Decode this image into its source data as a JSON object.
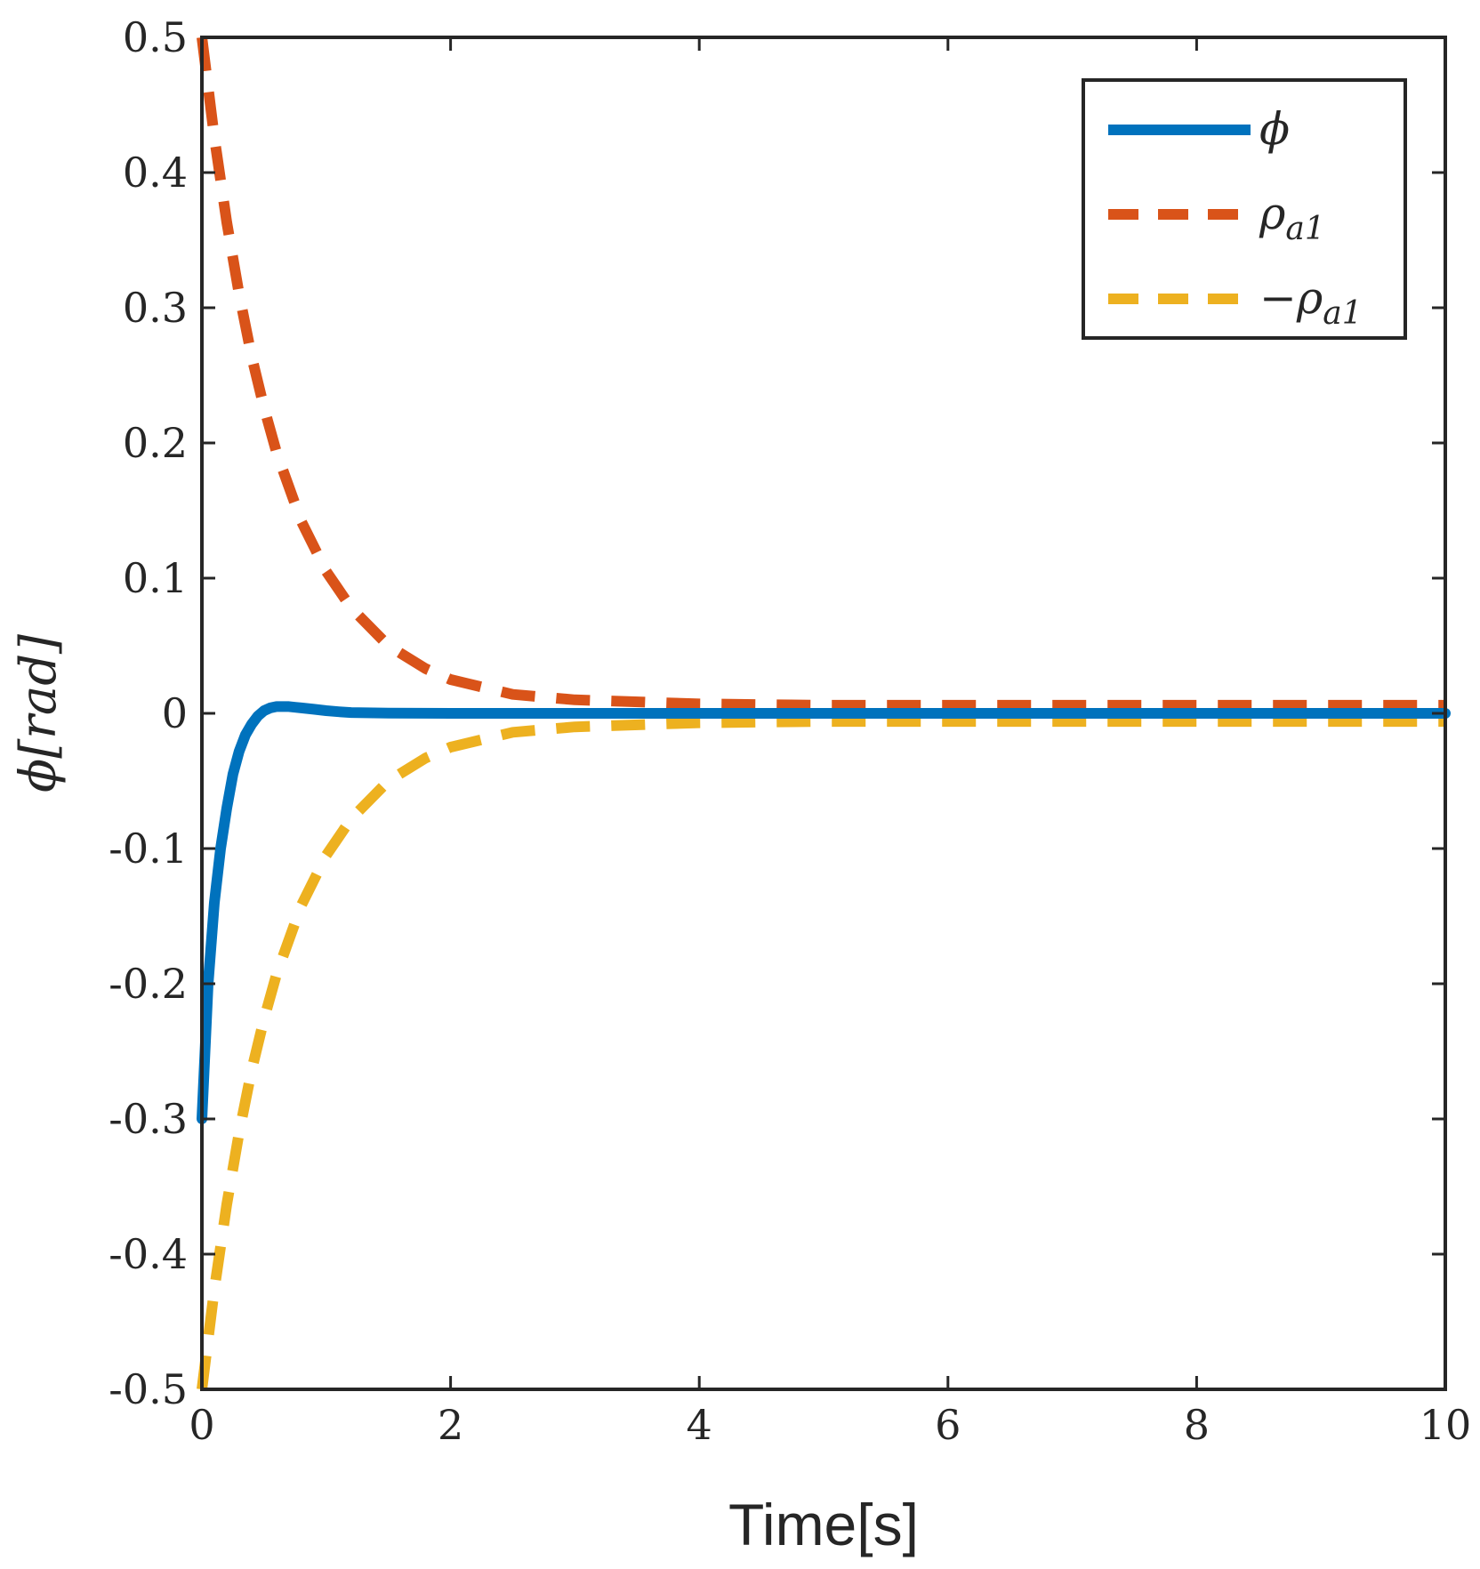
{
  "chart_data": {
    "type": "line",
    "title": "",
    "xlabel": "Time[s]",
    "ylabel_symbol": "ϕ",
    "ylabel_unit": "[rad]",
    "xlim": [
      0,
      10
    ],
    "ylim": [
      -0.5,
      0.5
    ],
    "grid": false,
    "legend_position": "top-right",
    "x_ticks": [
      0,
      2,
      4,
      6,
      8,
      10
    ],
    "x_tick_labels": [
      "0",
      "2",
      "4",
      "6",
      "8",
      "10"
    ],
    "y_ticks": [
      0.5,
      0.4,
      0.3,
      0.2,
      0.1,
      0,
      -0.1,
      -0.2,
      -0.3,
      -0.4,
      -0.5
    ],
    "y_tick_labels": [
      "0.5",
      "0.4",
      "0.3",
      "0.2",
      "0.1",
      "0",
      "-0.1",
      "-0.2",
      "-0.3",
      "-0.4",
      "-0.5"
    ],
    "series": [
      {
        "name": "ϕ",
        "legend_main": "ϕ",
        "legend_sub": "",
        "color": "#0072BD",
        "style": "solid",
        "x": [
          0,
          0.05,
          0.1,
          0.15,
          0.2,
          0.25,
          0.3,
          0.35,
          0.4,
          0.45,
          0.5,
          0.55,
          0.6,
          0.65,
          0.7,
          0.75,
          0.8,
          0.9,
          1.0,
          1.1,
          1.2,
          1.5,
          2,
          3,
          4,
          5,
          6,
          7,
          8,
          9,
          10
        ],
        "values": [
          -0.3,
          -0.2,
          -0.14,
          -0.1,
          -0.07,
          -0.045,
          -0.028,
          -0.016,
          -0.008,
          -0.002,
          0.002,
          0.004,
          0.005,
          0.005,
          0.005,
          0.0045,
          0.004,
          0.003,
          0.002,
          0.0012,
          0.0006,
          0.0002,
          0,
          0,
          0,
          0,
          0,
          0,
          0,
          0,
          0
        ]
      },
      {
        "name": "ρa1",
        "legend_main": "ρ",
        "legend_sub": "a1",
        "color": "#D95319",
        "style": "dashed",
        "x": [
          0,
          0.1,
          0.2,
          0.3,
          0.4,
          0.5,
          0.6,
          0.8,
          1.0,
          1.2,
          1.5,
          1.8,
          2.0,
          2.5,
          3,
          4,
          5,
          6,
          7,
          8,
          9,
          10
        ],
        "values": [
          0.5,
          0.426,
          0.363,
          0.31,
          0.264,
          0.226,
          0.193,
          0.142,
          0.105,
          0.078,
          0.05,
          0.033,
          0.025,
          0.014,
          0.01,
          0.007,
          0.006,
          0.006,
          0.006,
          0.006,
          0.006,
          0.006
        ]
      },
      {
        "name": "−ρa1",
        "legend_main": "−ρ",
        "legend_sub": "a1",
        "color": "#EDB120",
        "style": "dashed",
        "x": [
          0,
          0.1,
          0.2,
          0.3,
          0.4,
          0.5,
          0.6,
          0.8,
          1.0,
          1.2,
          1.5,
          1.8,
          2.0,
          2.5,
          3,
          4,
          5,
          6,
          7,
          8,
          9,
          10
        ],
        "values": [
          -0.5,
          -0.426,
          -0.363,
          -0.31,
          -0.264,
          -0.226,
          -0.193,
          -0.142,
          -0.105,
          -0.078,
          -0.05,
          -0.033,
          -0.025,
          -0.014,
          -0.01,
          -0.007,
          -0.006,
          -0.006,
          -0.006,
          -0.006,
          -0.006,
          -0.006
        ]
      }
    ]
  }
}
